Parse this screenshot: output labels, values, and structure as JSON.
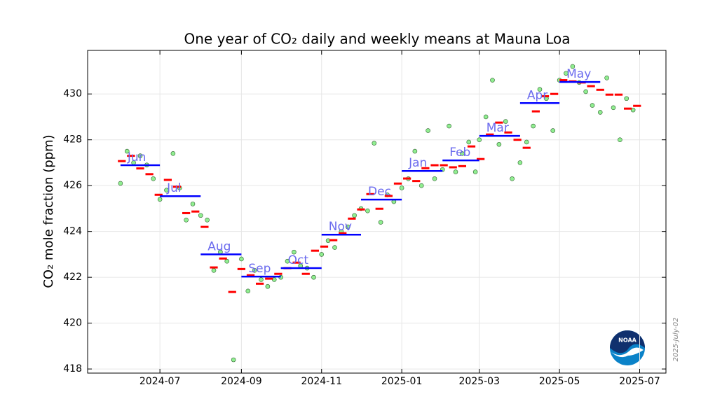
{
  "chart_data": {
    "type": "scatter",
    "title": "One year of CO₂ daily and weekly means at Mauna Loa",
    "y_label": "CO₂ mole fraction (ppm)",
    "stamp": "2025-July-02",
    "logo_text": "NOAA",
    "grid": true,
    "xlim": [
      "2024-05-07",
      "2025-07-21"
    ],
    "xticks": [
      {
        "value": "2024-07-01",
        "label": "2024-07"
      },
      {
        "value": "2024-09-01",
        "label": "2024-09"
      },
      {
        "value": "2024-11-01",
        "label": "2024-11"
      },
      {
        "value": "2025-01-01",
        "label": "2025-01"
      },
      {
        "value": "2025-03-01",
        "label": "2025-03"
      },
      {
        "value": "2025-05-01",
        "label": "2025-05"
      },
      {
        "value": "2025-07-01",
        "label": "2025-07"
      }
    ],
    "ylim": [
      417.82,
      431.9
    ],
    "yticks": [
      418,
      420,
      422,
      424,
      426,
      428,
      430
    ],
    "daily": {
      "color": "#90ee90",
      "edge": "#2e5e2e",
      "x": [
        "2024-06-01",
        "2024-06-06",
        "2024-06-11",
        "2024-06-16",
        "2024-06-21",
        "2024-06-26",
        "2024-07-01",
        "2024-07-06",
        "2024-07-11",
        "2024-07-16",
        "2024-07-21",
        "2024-07-26",
        "2024-08-01",
        "2024-08-06",
        "2024-08-11",
        "2024-08-16",
        "2024-08-21",
        "2024-08-26",
        "2024-09-01",
        "2024-09-06",
        "2024-09-11",
        "2024-09-16",
        "2024-09-21",
        "2024-09-26",
        "2024-10-01",
        "2024-10-06",
        "2024-10-11",
        "2024-10-16",
        "2024-10-21",
        "2024-10-26",
        "2024-11-01",
        "2024-11-06",
        "2024-11-11",
        "2024-11-16",
        "2024-11-21",
        "2024-11-26",
        "2024-12-01",
        "2024-12-06",
        "2024-12-11",
        "2024-12-16",
        "2024-12-21",
        "2024-12-26",
        "2025-01-01",
        "2025-01-06",
        "2025-01-11",
        "2025-01-16",
        "2025-01-21",
        "2025-01-26",
        "2025-02-01",
        "2025-02-06",
        "2025-02-11",
        "2025-02-16",
        "2025-02-21",
        "2025-02-26",
        "2025-03-01",
        "2025-03-06",
        "2025-03-11",
        "2025-03-16",
        "2025-03-21",
        "2025-03-26",
        "2025-04-01",
        "2025-04-06",
        "2025-04-11",
        "2025-04-16",
        "2025-04-21",
        "2025-04-26",
        "2025-05-01",
        "2025-05-06",
        "2025-05-11",
        "2025-05-16",
        "2025-05-21",
        "2025-05-26",
        "2025-06-01",
        "2025-06-06",
        "2025-06-11",
        "2025-06-16",
        "2025-06-21",
        "2025-06-26"
      ],
      "values": [
        426.1,
        427.5,
        427.0,
        427.3,
        426.9,
        426.3,
        425.4,
        425.8,
        427.4,
        425.9,
        424.5,
        425.2,
        424.7,
        424.5,
        422.3,
        423.1,
        422.7,
        418.4,
        422.8,
        421.4,
        422.3,
        421.9,
        421.6,
        421.9,
        422.0,
        422.7,
        423.1,
        422.5,
        422.4,
        422.0,
        423.0,
        423.6,
        423.3,
        424.0,
        424.2,
        424.7,
        425.0,
        424.9,
        427.85,
        424.4,
        425.6,
        425.3,
        425.9,
        426.3,
        427.5,
        426.0,
        428.4,
        426.3,
        426.7,
        428.6,
        426.6,
        427.4,
        427.9,
        426.6,
        428.0,
        429.0,
        430.6,
        427.8,
        428.8,
        426.3,
        427.0,
        427.9,
        428.6,
        430.2,
        429.8,
        428.4,
        430.6,
        430.9,
        431.2,
        430.5,
        430.1,
        429.5,
        429.2,
        430.7,
        429.4,
        428.0,
        429.8,
        429.3
      ]
    },
    "weekly": {
      "color": "#ff0000",
      "x": [
        "2024-06-02",
        "2024-06-09",
        "2024-06-16",
        "2024-06-23",
        "2024-06-30",
        "2024-07-07",
        "2024-07-14",
        "2024-07-21",
        "2024-07-28",
        "2024-08-04",
        "2024-08-11",
        "2024-08-18",
        "2024-08-25",
        "2024-09-01",
        "2024-09-08",
        "2024-09-15",
        "2024-09-22",
        "2024-09-29",
        "2024-10-06",
        "2024-10-13",
        "2024-10-20",
        "2024-10-27",
        "2024-11-03",
        "2024-11-10",
        "2024-11-17",
        "2024-11-24",
        "2024-12-01",
        "2024-12-08",
        "2024-12-15",
        "2024-12-22",
        "2024-12-29",
        "2025-01-05",
        "2025-01-12",
        "2025-01-19",
        "2025-01-26",
        "2025-02-02",
        "2025-02-09",
        "2025-02-16",
        "2025-02-23",
        "2025-03-02",
        "2025-03-09",
        "2025-03-16",
        "2025-03-23",
        "2025-03-30",
        "2025-04-06",
        "2025-04-13",
        "2025-04-20",
        "2025-04-27",
        "2025-05-04",
        "2025-05-11",
        "2025-05-18",
        "2025-05-25",
        "2025-06-01",
        "2025-06-08",
        "2025-06-15",
        "2025-06-22",
        "2025-06-29"
      ],
      "values": [
        427.07,
        427.3,
        426.75,
        426.5,
        425.6,
        426.25,
        425.95,
        424.8,
        424.87,
        424.2,
        422.43,
        422.82,
        421.36,
        422.36,
        422.09,
        421.72,
        421.94,
        422.15,
        422.4,
        422.64,
        422.15,
        423.16,
        423.34,
        423.62,
        423.92,
        424.56,
        424.96,
        425.63,
        424.99,
        425.55,
        426.09,
        426.31,
        426.2,
        426.76,
        426.89,
        426.89,
        426.8,
        426.85,
        427.71,
        427.16,
        428.23,
        428.75,
        428.32,
        428.0,
        427.65,
        429.24,
        429.9,
        430.0,
        430.6,
        430.55,
        430.5,
        430.34,
        430.18,
        429.97,
        429.97,
        429.36,
        429.48
      ]
    },
    "monthly": {
      "color": "#0000ff",
      "label_color": "#6b6bee",
      "x": [
        "2024-06",
        "2024-07",
        "2024-08",
        "2024-09",
        "2024-10",
        "2024-11",
        "2024-12",
        "2025-01",
        "2025-02",
        "2025-03",
        "2025-04",
        "2025-05"
      ],
      "labels": [
        "Jun",
        "Jul",
        "Aug",
        "Sep",
        "Oct",
        "Nov",
        "Dec",
        "Jan",
        "Feb",
        "Mar",
        "Apr",
        "May"
      ],
      "values": [
        426.89,
        425.54,
        423.0,
        422.03,
        422.4,
        423.86,
        425.39,
        426.64,
        427.1,
        428.17,
        429.6,
        430.52
      ]
    }
  }
}
